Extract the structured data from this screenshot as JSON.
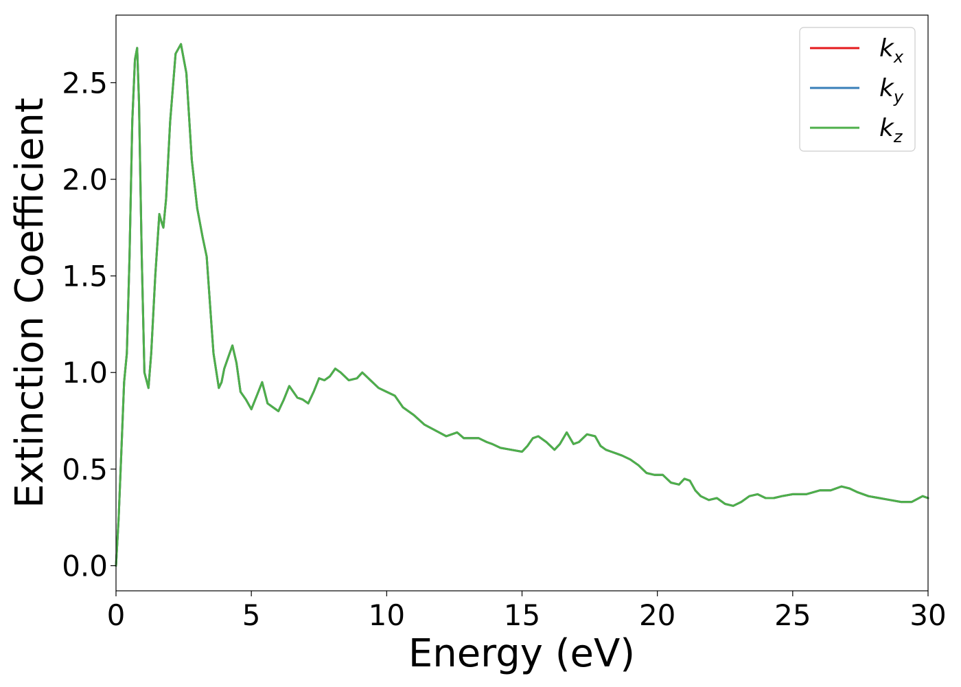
{
  "chart_data": {
    "type": "line",
    "xlabel": "Energy (eV)",
    "ylabel": "Extinction Coefficient",
    "xlim": [
      0,
      30
    ],
    "ylim": [
      -0.13,
      2.85
    ],
    "x_ticks": [
      "0",
      "5",
      "10",
      "15",
      "20",
      "25",
      "30"
    ],
    "y_ticks": [
      "0.0",
      "0.5",
      "1.0",
      "1.5",
      "2.0",
      "2.5"
    ],
    "grid": false,
    "legend_position": "top-right",
    "x": [
      0,
      0.1,
      0.2,
      0.3,
      0.4,
      0.5,
      0.6,
      0.7,
      0.78,
      0.85,
      0.95,
      1.05,
      1.2,
      1.3,
      1.45,
      1.6,
      1.68,
      1.75,
      1.85,
      2.0,
      2.2,
      2.4,
      2.6,
      2.8,
      3.0,
      3.2,
      3.35,
      3.5,
      3.6,
      3.8,
      3.9,
      4.0,
      4.15,
      4.3,
      4.45,
      4.6,
      4.8,
      5.0,
      5.2,
      5.4,
      5.6,
      5.8,
      6.0,
      6.2,
      6.4,
      6.7,
      6.9,
      7.1,
      7.3,
      7.5,
      7.7,
      7.9,
      8.1,
      8.3,
      8.6,
      8.9,
      9.1,
      9.4,
      9.7,
      10.0,
      10.3,
      10.6,
      11.0,
      11.4,
      11.8,
      12.2,
      12.6,
      12.85,
      13.1,
      13.4,
      13.7,
      13.9,
      14.2,
      14.6,
      15.0,
      15.2,
      15.4,
      15.6,
      15.9,
      16.2,
      16.4,
      16.65,
      16.9,
      17.1,
      17.4,
      17.7,
      17.9,
      18.1,
      18.3,
      18.5,
      18.7,
      19.0,
      19.3,
      19.6,
      19.9,
      20.2,
      20.5,
      20.8,
      21.0,
      21.2,
      21.4,
      21.6,
      21.9,
      22.2,
      22.5,
      22.8,
      23.1,
      23.4,
      23.7,
      24.0,
      24.3,
      24.6,
      25.0,
      25.5,
      26.0,
      26.4,
      26.8,
      27.1,
      27.4,
      27.8,
      28.2,
      28.6,
      29.0,
      29.4,
      29.8,
      30.0
    ],
    "series": [
      {
        "name": "k_x",
        "color": "#e41a1c",
        "values": [
          0,
          0.25,
          0.6,
          0.95,
          1.1,
          1.6,
          2.3,
          2.62,
          2.68,
          2.4,
          1.6,
          1.0,
          0.92,
          1.1,
          1.5,
          1.82,
          1.78,
          1.75,
          1.9,
          2.3,
          2.65,
          2.7,
          2.55,
          2.1,
          1.85,
          1.7,
          1.6,
          1.3,
          1.1,
          0.92,
          0.95,
          1.02,
          1.08,
          1.14,
          1.05,
          0.9,
          0.86,
          0.81,
          0.88,
          0.95,
          0.84,
          0.82,
          0.8,
          0.86,
          0.93,
          0.87,
          0.86,
          0.84,
          0.9,
          0.97,
          0.96,
          0.98,
          1.02,
          1.0,
          0.96,
          0.97,
          1.0,
          0.96,
          0.92,
          0.9,
          0.88,
          0.82,
          0.78,
          0.73,
          0.7,
          0.67,
          0.69,
          0.66,
          0.66,
          0.66,
          0.64,
          0.63,
          0.61,
          0.6,
          0.59,
          0.62,
          0.66,
          0.67,
          0.64,
          0.6,
          0.63,
          0.69,
          0.63,
          0.64,
          0.68,
          0.67,
          0.62,
          0.6,
          0.59,
          0.58,
          0.57,
          0.55,
          0.52,
          0.48,
          0.47,
          0.47,
          0.43,
          0.42,
          0.45,
          0.44,
          0.39,
          0.36,
          0.34,
          0.35,
          0.32,
          0.31,
          0.33,
          0.36,
          0.37,
          0.35,
          0.35,
          0.36,
          0.37,
          0.37,
          0.39,
          0.39,
          0.41,
          0.4,
          0.38,
          0.36,
          0.35,
          0.34,
          0.33,
          0.33,
          0.36,
          0.35
        ]
      },
      {
        "name": "k_y",
        "color": "#377eb8",
        "values": [
          0,
          0.25,
          0.6,
          0.95,
          1.1,
          1.6,
          2.3,
          2.62,
          2.68,
          2.4,
          1.6,
          1.0,
          0.92,
          1.1,
          1.5,
          1.82,
          1.78,
          1.75,
          1.9,
          2.3,
          2.65,
          2.7,
          2.55,
          2.1,
          1.85,
          1.7,
          1.6,
          1.3,
          1.1,
          0.92,
          0.95,
          1.02,
          1.08,
          1.14,
          1.05,
          0.9,
          0.86,
          0.81,
          0.88,
          0.95,
          0.84,
          0.82,
          0.8,
          0.86,
          0.93,
          0.87,
          0.86,
          0.84,
          0.9,
          0.97,
          0.96,
          0.98,
          1.02,
          1.0,
          0.96,
          0.97,
          1.0,
          0.96,
          0.92,
          0.9,
          0.88,
          0.82,
          0.78,
          0.73,
          0.7,
          0.67,
          0.69,
          0.66,
          0.66,
          0.66,
          0.64,
          0.63,
          0.61,
          0.6,
          0.59,
          0.62,
          0.66,
          0.67,
          0.64,
          0.6,
          0.63,
          0.69,
          0.63,
          0.64,
          0.68,
          0.67,
          0.62,
          0.6,
          0.59,
          0.58,
          0.57,
          0.55,
          0.52,
          0.48,
          0.47,
          0.47,
          0.43,
          0.42,
          0.45,
          0.44,
          0.39,
          0.36,
          0.34,
          0.35,
          0.32,
          0.31,
          0.33,
          0.36,
          0.37,
          0.35,
          0.35,
          0.36,
          0.37,
          0.37,
          0.39,
          0.39,
          0.41,
          0.4,
          0.38,
          0.36,
          0.35,
          0.34,
          0.33,
          0.33,
          0.36,
          0.35
        ]
      },
      {
        "name": "k_z",
        "color": "#4daf4a",
        "values": [
          0,
          0.25,
          0.6,
          0.95,
          1.1,
          1.6,
          2.3,
          2.62,
          2.68,
          2.4,
          1.6,
          1.0,
          0.92,
          1.1,
          1.5,
          1.82,
          1.78,
          1.75,
          1.9,
          2.3,
          2.65,
          2.7,
          2.55,
          2.1,
          1.85,
          1.7,
          1.6,
          1.3,
          1.1,
          0.92,
          0.95,
          1.02,
          1.08,
          1.14,
          1.05,
          0.9,
          0.86,
          0.81,
          0.88,
          0.95,
          0.84,
          0.82,
          0.8,
          0.86,
          0.93,
          0.87,
          0.86,
          0.84,
          0.9,
          0.97,
          0.96,
          0.98,
          1.02,
          1.0,
          0.96,
          0.97,
          1.0,
          0.96,
          0.92,
          0.9,
          0.88,
          0.82,
          0.78,
          0.73,
          0.7,
          0.67,
          0.69,
          0.66,
          0.66,
          0.66,
          0.64,
          0.63,
          0.61,
          0.6,
          0.59,
          0.62,
          0.66,
          0.67,
          0.64,
          0.6,
          0.63,
          0.69,
          0.63,
          0.64,
          0.68,
          0.67,
          0.62,
          0.6,
          0.59,
          0.58,
          0.57,
          0.55,
          0.52,
          0.48,
          0.47,
          0.47,
          0.43,
          0.42,
          0.45,
          0.44,
          0.39,
          0.36,
          0.34,
          0.35,
          0.32,
          0.31,
          0.33,
          0.36,
          0.37,
          0.35,
          0.35,
          0.36,
          0.37,
          0.37,
          0.39,
          0.39,
          0.41,
          0.4,
          0.38,
          0.36,
          0.35,
          0.34,
          0.33,
          0.33,
          0.36,
          0.35
        ]
      }
    ],
    "legend": [
      {
        "base": "k",
        "sub": "x",
        "color": "#e41a1c"
      },
      {
        "base": "k",
        "sub": "y",
        "color": "#377eb8"
      },
      {
        "base": "k",
        "sub": "z",
        "color": "#4daf4a"
      }
    ]
  }
}
